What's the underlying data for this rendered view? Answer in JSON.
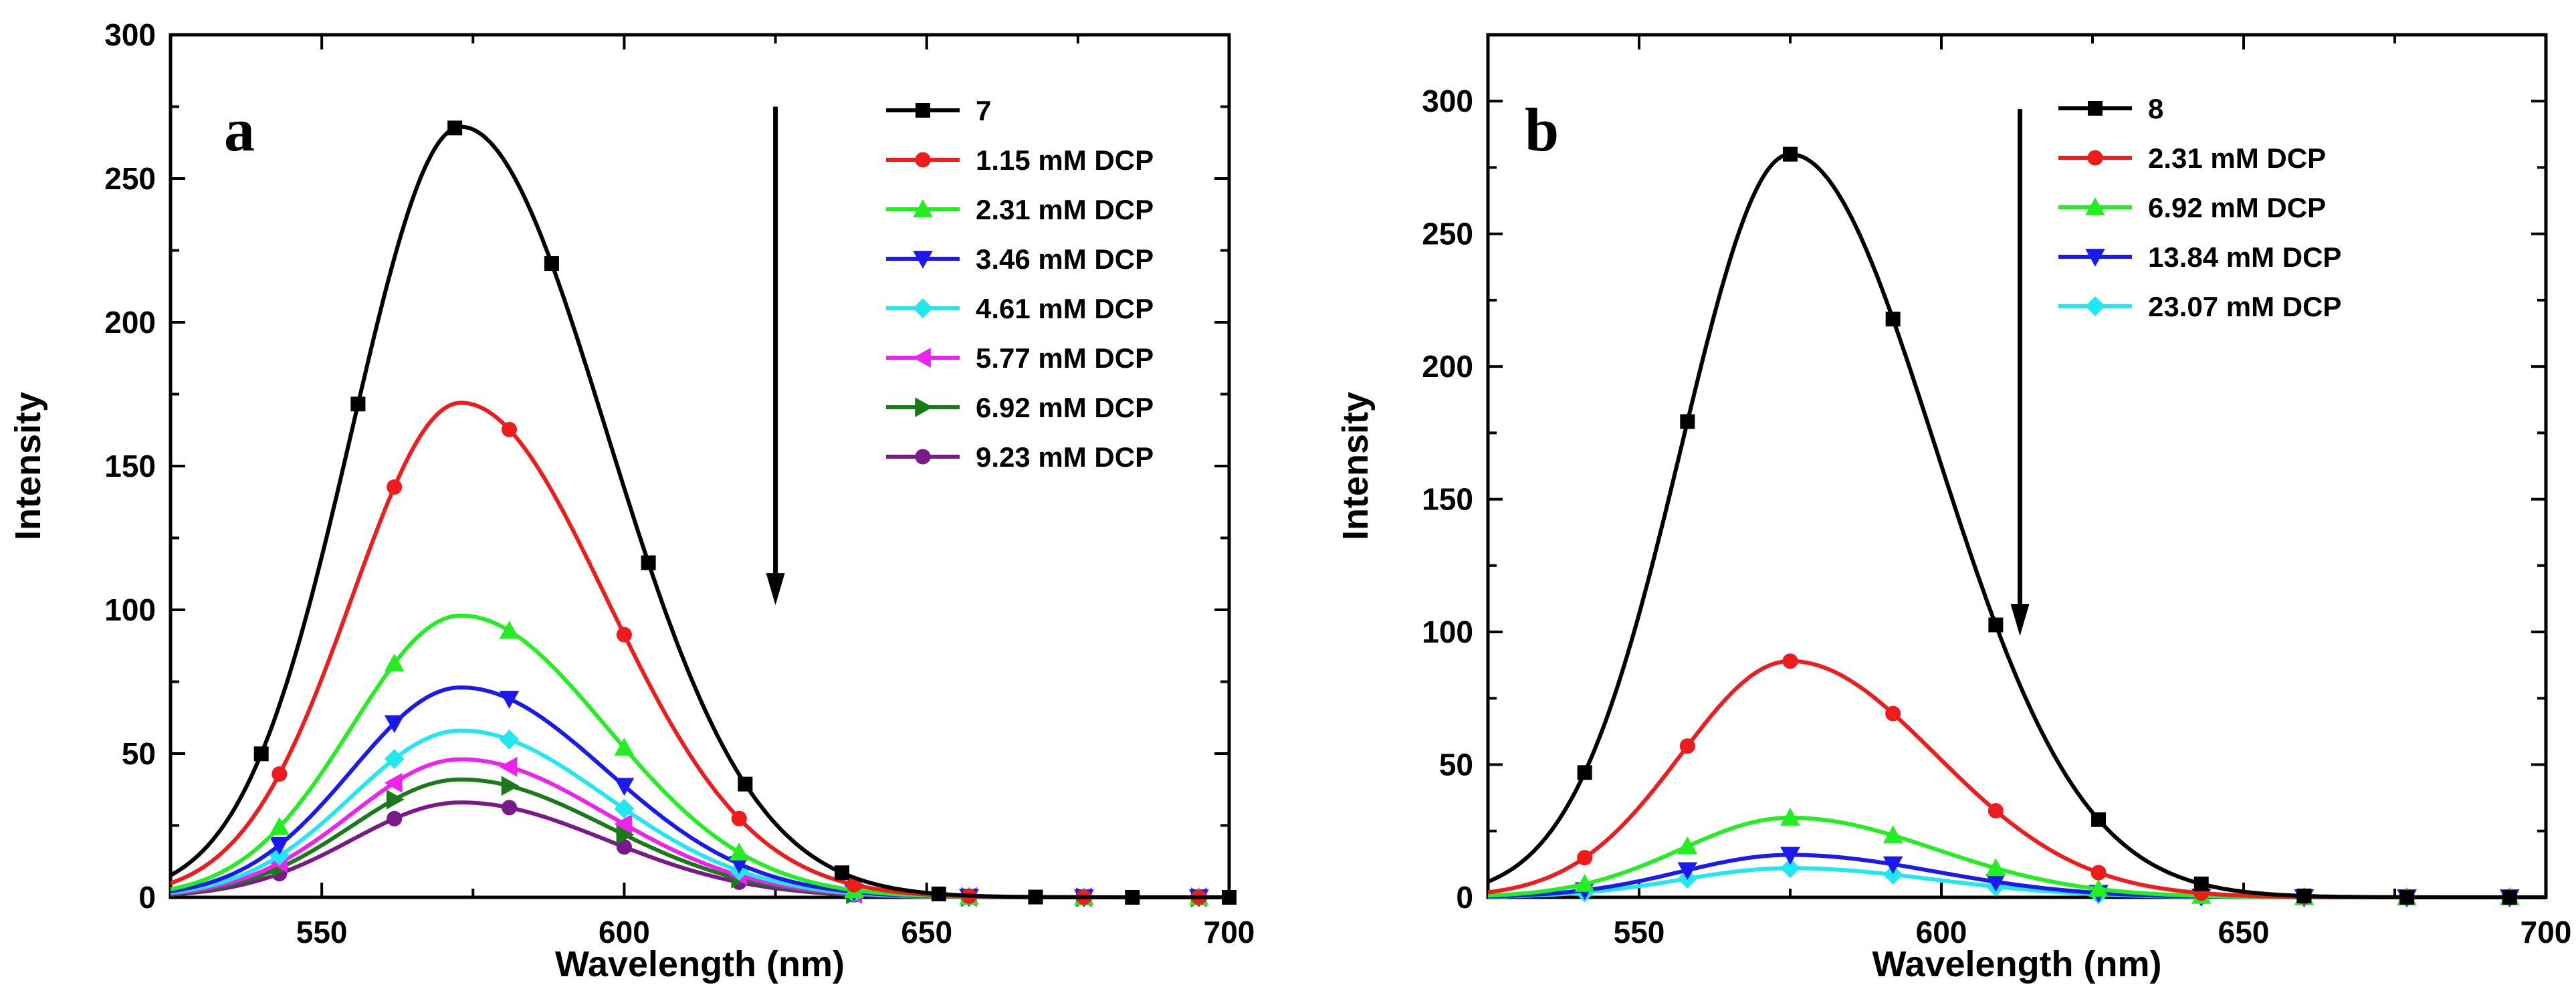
{
  "chart_data": [
    {
      "panel_label": "a",
      "type": "line",
      "xlabel": "Wavelength (nm)",
      "ylabel": "Intensity",
      "xlim": [
        525,
        700
      ],
      "ylim": [
        0,
        300
      ],
      "xticks": [
        550,
        600,
        650,
        700
      ],
      "yticks": [
        0,
        50,
        100,
        150,
        200,
        250,
        300
      ],
      "arrow": {
        "x": 625,
        "y_start": 275,
        "y_end": 103
      },
      "series": [
        {
          "name": "7",
          "color": "#000000",
          "marker": "square",
          "peak": 268,
          "center": 573,
          "sigma_left": 18,
          "sigma_right": 24,
          "marker_x": [
            540,
            556,
            572,
            588,
            604,
            620,
            636,
            652,
            668,
            684,
            700
          ]
        },
        {
          "name": "1.15 mM DCP",
          "color": "#ee1c1c",
          "marker": "circle",
          "peak": 172,
          "center": 573,
          "sigma_left": 18,
          "sigma_right": 24,
          "marker_x": [
            543,
            562,
            581,
            600,
            619,
            638,
            657,
            676,
            695
          ]
        },
        {
          "name": "2.31 mM DCP",
          "color": "#22ee22",
          "marker": "triangle-up",
          "peak": 98,
          "center": 573,
          "sigma_left": 18,
          "sigma_right": 24,
          "marker_x": [
            543,
            562,
            581,
            600,
            619,
            638,
            657,
            676,
            695
          ]
        },
        {
          "name": "3.46 mM DCP",
          "color": "#1a1aee",
          "marker": "triangle-down",
          "peak": 73,
          "center": 573,
          "sigma_left": 18,
          "sigma_right": 24,
          "marker_x": [
            543,
            562,
            581,
            600,
            619,
            638,
            657,
            676,
            695
          ]
        },
        {
          "name": "4.61 mM DCP",
          "color": "#22e6f0",
          "marker": "diamond",
          "peak": 58,
          "center": 573,
          "sigma_left": 18,
          "sigma_right": 24,
          "marker_x": [
            543,
            562,
            581,
            600,
            619,
            638,
            657,
            676,
            695
          ]
        },
        {
          "name": "5.77 mM DCP",
          "color": "#ee22ee",
          "marker": "triangle-left",
          "peak": 48,
          "center": 573,
          "sigma_left": 18,
          "sigma_right": 24,
          "marker_x": [
            543,
            562,
            581,
            600,
            619,
            638,
            657,
            676,
            695
          ]
        },
        {
          "name": "6.92 mM DCP",
          "color": "#1a7a1a",
          "marker": "triangle-right",
          "peak": 41,
          "center": 573,
          "sigma_left": 18,
          "sigma_right": 24,
          "marker_x": [
            543,
            562,
            581,
            600,
            619,
            638,
            657,
            676,
            695
          ]
        },
        {
          "name": "9.23 mM DCP",
          "color": "#7a1a8a",
          "marker": "circle",
          "peak": 33,
          "center": 573,
          "sigma_left": 18,
          "sigma_right": 24,
          "marker_x": [
            543,
            562,
            581,
            600,
            619,
            638,
            657,
            676,
            695
          ]
        }
      ]
    },
    {
      "panel_label": "b",
      "type": "line",
      "xlabel": "Wavelength (nm)",
      "ylabel": "Intensity",
      "xlim": [
        525,
        700
      ],
      "ylim": [
        0,
        325
      ],
      "xticks": [
        550,
        600,
        650,
        700
      ],
      "yticks": [
        0,
        50,
        100,
        150,
        200,
        250,
        300
      ],
      "arrow": {
        "x": 613,
        "y_start": 297,
        "y_end": 100
      },
      "series": [
        {
          "name": "8",
          "color": "#000000",
          "marker": "square",
          "peak": 280,
          "center": 575,
          "sigma_left": 18,
          "sigma_right": 24,
          "marker_x": [
            541,
            558,
            575,
            592,
            609,
            626,
            643,
            660,
            677,
            694
          ]
        },
        {
          "name": "2.31 mM DCP",
          "color": "#ee1c1c",
          "marker": "circle",
          "peak": 89,
          "center": 575,
          "sigma_left": 18,
          "sigma_right": 24,
          "marker_x": [
            541,
            558,
            575,
            592,
            609,
            626,
            643,
            660,
            677,
            694
          ]
        },
        {
          "name": "6.92 mM DCP",
          "color": "#22ee22",
          "marker": "triangle-up",
          "peak": 30,
          "center": 575,
          "sigma_left": 18,
          "sigma_right": 24,
          "marker_x": [
            541,
            558,
            575,
            592,
            609,
            626,
            643,
            660,
            677,
            694
          ]
        },
        {
          "name": "13.84 mM DCP",
          "color": "#1a1aee",
          "marker": "triangle-down",
          "peak": 16,
          "center": 575,
          "sigma_left": 18,
          "sigma_right": 24,
          "marker_x": [
            541,
            558,
            575,
            592,
            609,
            626,
            643,
            660,
            677,
            694
          ]
        },
        {
          "name": "23.07 mM DCP",
          "color": "#22e6f0",
          "marker": "diamond",
          "peak": 11,
          "center": 575,
          "sigma_left": 18,
          "sigma_right": 24,
          "marker_x": [
            541,
            558,
            575,
            592,
            609,
            626,
            643,
            660,
            677,
            694
          ]
        }
      ]
    }
  ]
}
